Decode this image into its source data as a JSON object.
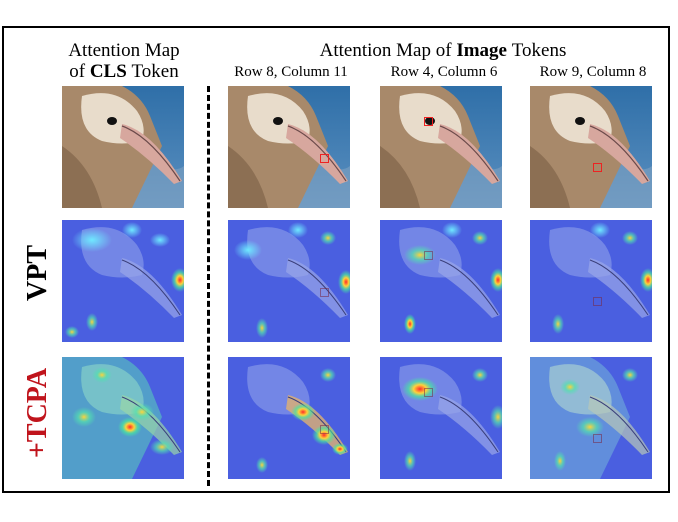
{
  "headers": {
    "cls_line1": "Attention Map",
    "cls_of": "of",
    "cls_bold": "CLS",
    "cls_token": "Token",
    "image_prefix": "Attention Map of",
    "image_bold": "Image",
    "image_suffix": "Tokens"
  },
  "columns": [
    {
      "label": ""
    },
    {
      "label": "Row 8, Column 11"
    },
    {
      "label": "Row 4, Column 6"
    },
    {
      "label": "Row 9, Column 8"
    }
  ],
  "rows": [
    {
      "label": ""
    },
    {
      "label": "VPT",
      "color": "#000000"
    },
    {
      "label": "+TCPA",
      "color": "#c0141c"
    }
  ],
  "colors": {
    "selection_box": "#e22222",
    "plus_tcpa": "#c0141c"
  }
}
